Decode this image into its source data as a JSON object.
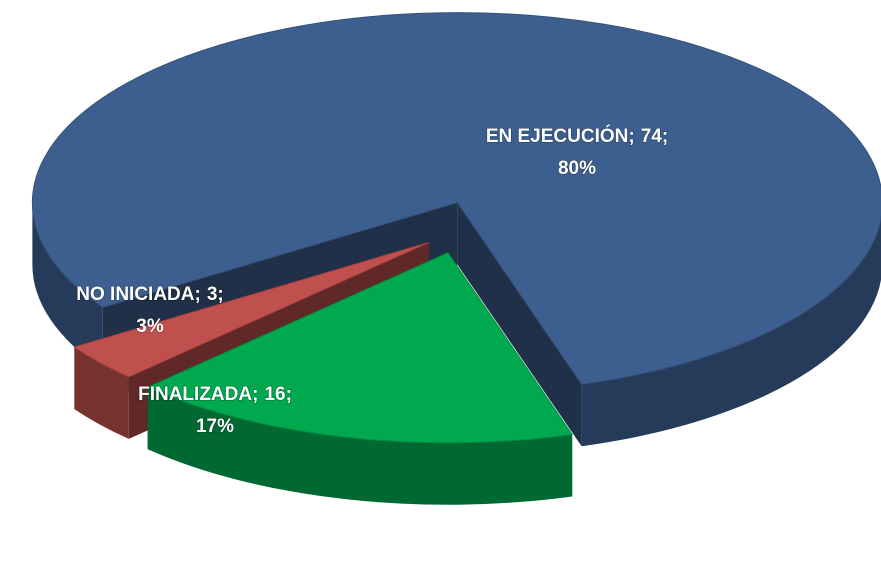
{
  "chart_data": {
    "type": "pie3d",
    "categories": [
      "FINALIZADA",
      "NO INICIADA",
      "EN EJECUCIÓN"
    ],
    "values": [
      16,
      3,
      74
    ],
    "percent_labels": [
      "17%",
      "3%",
      "80%"
    ],
    "label_separator": ";",
    "colors": [
      "#00a84f",
      "#c0504d",
      "#3d5f8f"
    ]
  }
}
